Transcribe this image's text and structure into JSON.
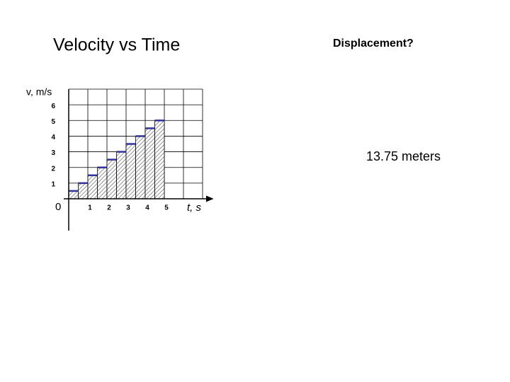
{
  "chart_data": {
    "type": "histogram",
    "title": "Velocity vs Time",
    "question": "Displacement?",
    "answer": "13.75 meters",
    "y_label": "v, m/s",
    "x_label": "t, s",
    "origin_label": "0",
    "bins": [
      0,
      0.5,
      1,
      1.5,
      2,
      2.5,
      3,
      3.5,
      4,
      4.5,
      5
    ],
    "values": [
      0.5,
      1,
      1.5,
      2,
      2.5,
      3,
      3.5,
      4,
      4.5,
      5
    ],
    "top_color": "#33339a",
    "answer_color": "#cc1111",
    "xlim": [
      0,
      7
    ],
    "ylim": [
      0,
      7
    ],
    "xticks": [
      1,
      2,
      3,
      4,
      5
    ],
    "yticks": [
      1,
      2,
      3,
      4,
      5,
      6
    ],
    "xgrid": [
      1,
      2,
      3,
      4,
      5,
      6,
      7
    ],
    "grid": true
  }
}
